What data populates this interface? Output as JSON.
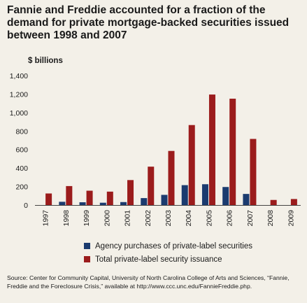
{
  "title": "Fannie and Freddie accounted for a fraction of the demand for private mortgage-backed securities issued between 1998 and 2007",
  "source": "Source: Center for Community Capital, University of North Carolina College of Arts and Sciences, “Fannie, Freddie and the Foreclosure Crisis,” available at http://www.ccc.unc.edu/FannieFreddie.php.",
  "chart_data": {
    "type": "bar",
    "ylabel": "$ billions",
    "ylim": [
      0,
      1400
    ],
    "yticks": [
      "0",
      "200",
      "400",
      "600",
      "800",
      "1,000",
      "1,200",
      "1,400"
    ],
    "ytick_values": [
      0,
      200,
      400,
      600,
      800,
      1000,
      1200,
      1400
    ],
    "categories": [
      "1997",
      "1998",
      "1999",
      "2000",
      "2001",
      "2002",
      "2003",
      "2004",
      "2005",
      "2006",
      "2007",
      "2008",
      "2009"
    ],
    "legend_position": "bottom",
    "grid": false,
    "series": [
      {
        "name": "Agency purchases of private-label securities",
        "color": "#1b3b6f",
        "values": [
          0,
          35,
          30,
          25,
          32,
          75,
          110,
          215,
          225,
          195,
          120,
          0,
          0
        ]
      },
      {
        "name": "Total private-label security issuance",
        "color": "#9b1c1c",
        "values": [
          125,
          205,
          155,
          145,
          270,
          415,
          585,
          865,
          1195,
          1150,
          715,
          55,
          65
        ]
      }
    ]
  }
}
